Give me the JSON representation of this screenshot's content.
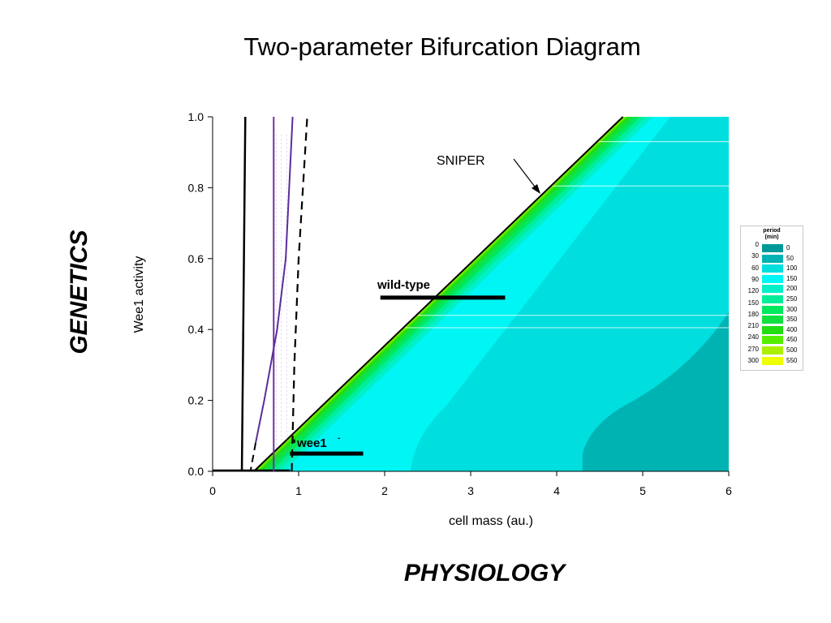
{
  "title": "Two-parameter Bifurcation Diagram",
  "side_labels": {
    "genetics": "GENETICS",
    "physiology": "PHYSIOLOGY"
  },
  "annotations": {
    "sniper": "SNIPER",
    "wild_type": "wild-type",
    "wee1": "wee1",
    "wee1_sup": "-"
  },
  "legend": {
    "title_line1": "period",
    "title_line2": "(min)",
    "left_values": [
      "0",
      "30",
      "60",
      "90",
      "120",
      "150",
      "180",
      "210",
      "240",
      "270",
      "300"
    ],
    "entries": [
      {
        "label": "0",
        "color": "#009999"
      },
      {
        "label": "50",
        "color": "#00b3b3"
      },
      {
        "label": "100",
        "color": "#00dede"
      },
      {
        "label": "150",
        "color": "#00f5f5"
      },
      {
        "label": "200",
        "color": "#00f0c8"
      },
      {
        "label": "250",
        "color": "#00ee99"
      },
      {
        "label": "300",
        "color": "#00e85e"
      },
      {
        "label": "350",
        "color": "#11e040"
      },
      {
        "label": "400",
        "color": "#22dd11"
      },
      {
        "label": "450",
        "color": "#55ee00"
      },
      {
        "label": "500",
        "color": "#aaf000"
      },
      {
        "label": "550",
        "color": "#eeff00"
      }
    ]
  },
  "chart_data": {
    "type": "heatmap",
    "title": "Two-parameter Bifurcation Diagram",
    "xlabel": "cell mass (au.)",
    "ylabel": "Wee1 activity",
    "xlim": [
      0,
      6
    ],
    "ylim": [
      0,
      1
    ],
    "xticks": [
      "0",
      "1",
      "2",
      "3",
      "4",
      "5",
      "6"
    ],
    "yticks": [
      "0.0",
      "0.2",
      "0.4",
      "0.6",
      "0.8",
      "1.0"
    ],
    "colorbar_label": "period (min)",
    "boundaries": [
      {
        "name": "SNIPER",
        "style": "solid",
        "points": [
          [
            0.48,
            0.0
          ],
          [
            4.77,
            1.0
          ]
        ]
      },
      {
        "style": "solid",
        "points": [
          [
            0.34,
            0.0
          ],
          [
            0.38,
            1.0
          ]
        ]
      },
      {
        "style": "solid-purple",
        "points": [
          [
            0.71,
            0.0
          ],
          [
            0.71,
            1.0
          ]
        ]
      },
      {
        "style": "purple-curve",
        "points": [
          [
            0.5,
            0.08
          ],
          [
            0.6,
            0.2
          ],
          [
            0.75,
            0.4
          ],
          [
            0.85,
            0.6
          ],
          [
            0.93,
            1.0
          ]
        ]
      },
      {
        "style": "dashed",
        "points": [
          [
            0.92,
            0.0
          ],
          [
            0.95,
            0.3
          ],
          [
            1.0,
            0.6
          ],
          [
            1.1,
            1.0
          ]
        ]
      }
    ],
    "markers": [
      {
        "label": "wild-type",
        "y": 0.49,
        "x": [
          1.95,
          3.4
        ]
      },
      {
        "label": "wee1-",
        "y": 0.05,
        "x": [
          0.9,
          1.75
        ]
      }
    ]
  }
}
